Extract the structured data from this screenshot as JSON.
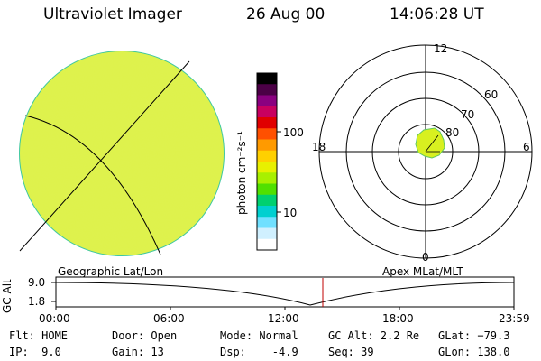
{
  "header": {
    "title": "Ultraviolet Imager",
    "date": "26 Aug 00",
    "time": "14:06:28 UT"
  },
  "colors": {
    "disk_fill": "#dff34a",
    "disk_edge": "#40c8a0",
    "auroral_patch": "#d8f020"
  },
  "colorbar": {
    "unit_label": "photon cm⁻²s⁻¹",
    "ticks": [
      "100",
      "10"
    ],
    "scale": "log",
    "colors": [
      "#000000",
      "#4b0046",
      "#8a0080",
      "#c80060",
      "#e00000",
      "#ff5000",
      "#ff9a00",
      "#ffd000",
      "#e8f000",
      "#a8f000",
      "#50e000",
      "#00d070",
      "#00d0d0",
      "#70e0ff",
      "#d0f0ff",
      "#ffffff"
    ]
  },
  "polar_plot": {
    "labels": {
      "top": "12",
      "bottom": "0",
      "left": "18",
      "right": "6",
      "lat60": "60",
      "lat70": "70",
      "lat80": "80"
    }
  },
  "footer_labels": {
    "geographic": "Geographic Lat/Lon",
    "apex": "Apex MLat/MLT"
  },
  "alt_plot": {
    "y_label": "GC Alt",
    "y_ticks": [
      "9.0",
      "1.8"
    ],
    "x_ticks": [
      "00:00",
      "06:00",
      "12:00",
      "18:00",
      "23:59"
    ]
  },
  "info": {
    "flt": "Flt: HOME",
    "ip": "IP:  9.0",
    "door": "Door: Open",
    "gain": "Gain: 13",
    "mode": "Mode: Normal",
    "dsp": "Dsp:    -4.9",
    "gcalt": "GC Alt: 2.2 Re",
    "seq": "Seq: 39",
    "glat": "GLat: −79.3",
    "glon": "GLon: 138.0"
  }
}
